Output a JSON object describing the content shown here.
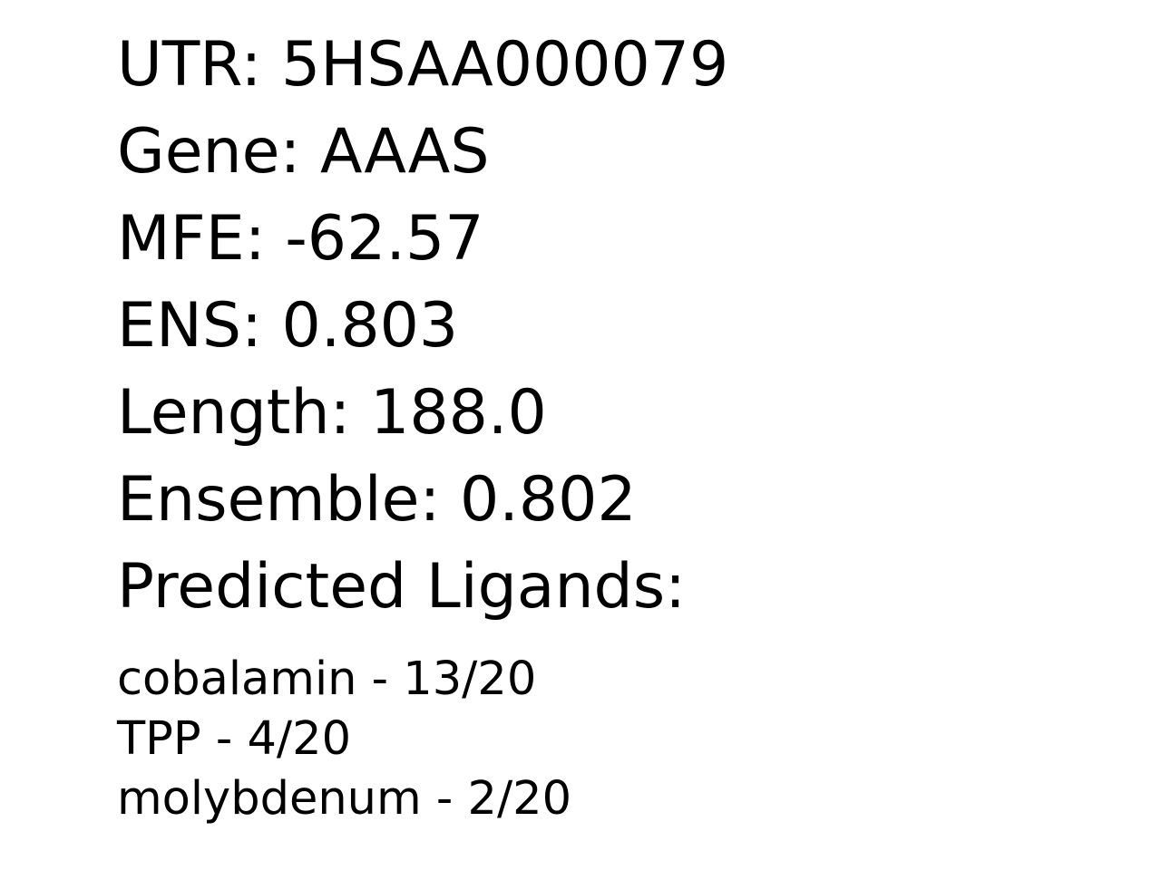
{
  "fields": [
    {
      "label": "UTR: 5HSAA000079"
    },
    {
      "label": "Gene: AAAS"
    },
    {
      "label": "MFE: -62.57"
    },
    {
      "label": "ENS: 0.803"
    },
    {
      "label": "Length: 188.0"
    },
    {
      "label": "Ensemble: 0.802"
    }
  ],
  "ligands_heading": "Predicted Ligands:",
  "ligands": [
    "cobalamin - 13/20",
    "TPP - 4/20",
    "molybdenum - 2/20"
  ]
}
